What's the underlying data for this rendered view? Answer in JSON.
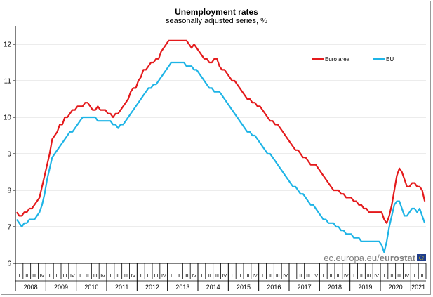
{
  "chart_data": {
    "type": "line",
    "title": "Unemployment rates",
    "subtitle": "seasonally adjusted series, %",
    "xlabel": "",
    "ylabel": "",
    "ylim": [
      6,
      12.5
    ],
    "yticks": [
      "6",
      "7",
      "8",
      "9",
      "10",
      "11",
      "12"
    ],
    "grid": true,
    "legend_position": "top-right",
    "x_start": "2008-01",
    "x_end": "2021-03",
    "years": [
      "2008",
      "2009",
      "2010",
      "2011",
      "2012",
      "2013",
      "2014",
      "2015",
      "2016",
      "2017",
      "2018",
      "2019",
      "2020",
      "2021"
    ],
    "quarter_labels": [
      "I",
      "II",
      "III",
      "IV"
    ],
    "series": [
      {
        "name": "Euro area",
        "color": "#e41a1c",
        "values": [
          7.4,
          7.3,
          7.3,
          7.4,
          7.4,
          7.5,
          7.5,
          7.6,
          7.7,
          7.8,
          8.1,
          8.4,
          8.7,
          9.0,
          9.4,
          9.5,
          9.6,
          9.8,
          9.8,
          10.0,
          10.0,
          10.1,
          10.2,
          10.2,
          10.3,
          10.3,
          10.3,
          10.4,
          10.4,
          10.3,
          10.2,
          10.2,
          10.3,
          10.2,
          10.2,
          10.2,
          10.1,
          10.1,
          10.0,
          10.1,
          10.1,
          10.2,
          10.3,
          10.4,
          10.5,
          10.7,
          10.8,
          10.8,
          11.0,
          11.1,
          11.3,
          11.3,
          11.4,
          11.5,
          11.5,
          11.6,
          11.6,
          11.8,
          11.9,
          12.0,
          12.1,
          12.1,
          12.1,
          12.1,
          12.1,
          12.1,
          12.1,
          12.1,
          12.0,
          11.9,
          12.0,
          11.9,
          11.8,
          11.7,
          11.6,
          11.6,
          11.5,
          11.5,
          11.6,
          11.6,
          11.4,
          11.3,
          11.3,
          11.2,
          11.1,
          11.0,
          11.0,
          10.9,
          10.8,
          10.7,
          10.6,
          10.5,
          10.5,
          10.4,
          10.4,
          10.3,
          10.3,
          10.2,
          10.1,
          10.0,
          9.9,
          9.9,
          9.8,
          9.8,
          9.7,
          9.6,
          9.5,
          9.4,
          9.3,
          9.2,
          9.1,
          9.1,
          9.0,
          8.9,
          8.9,
          8.8,
          8.7,
          8.7,
          8.7,
          8.6,
          8.5,
          8.4,
          8.3,
          8.2,
          8.1,
          8.0,
          8.0,
          8.0,
          7.9,
          7.9,
          7.8,
          7.8,
          7.8,
          7.7,
          7.7,
          7.6,
          7.6,
          7.5,
          7.5,
          7.4,
          7.4,
          7.4,
          7.4,
          7.4,
          7.4,
          7.2,
          7.1,
          7.3,
          7.6,
          8.0,
          8.4,
          8.6,
          8.5,
          8.3,
          8.1,
          8.1,
          8.2,
          8.2,
          8.1,
          8.1,
          8.0,
          7.7
        ]
      },
      {
        "name": "EU",
        "color": "#1eb4e6",
        "values": [
          7.2,
          7.1,
          7.0,
          7.1,
          7.1,
          7.2,
          7.2,
          7.2,
          7.3,
          7.4,
          7.6,
          7.9,
          8.3,
          8.6,
          8.9,
          9.0,
          9.1,
          9.2,
          9.3,
          9.4,
          9.5,
          9.6,
          9.6,
          9.7,
          9.8,
          9.9,
          10.0,
          10.0,
          10.0,
          10.0,
          10.0,
          10.0,
          9.9,
          9.9,
          9.9,
          9.9,
          9.9,
          9.9,
          9.8,
          9.8,
          9.7,
          9.8,
          9.8,
          9.9,
          10.0,
          10.1,
          10.2,
          10.3,
          10.4,
          10.5,
          10.6,
          10.7,
          10.8,
          10.8,
          10.9,
          10.9,
          11.0,
          11.1,
          11.2,
          11.3,
          11.4,
          11.5,
          11.5,
          11.5,
          11.5,
          11.5,
          11.5,
          11.4,
          11.4,
          11.4,
          11.3,
          11.3,
          11.2,
          11.1,
          11.0,
          10.9,
          10.8,
          10.8,
          10.7,
          10.7,
          10.7,
          10.6,
          10.5,
          10.4,
          10.3,
          10.2,
          10.1,
          10.0,
          9.9,
          9.8,
          9.7,
          9.6,
          9.6,
          9.5,
          9.5,
          9.4,
          9.3,
          9.2,
          9.1,
          9.0,
          9.0,
          8.9,
          8.8,
          8.7,
          8.6,
          8.5,
          8.4,
          8.3,
          8.2,
          8.1,
          8.1,
          8.0,
          7.9,
          7.9,
          7.8,
          7.7,
          7.6,
          7.6,
          7.5,
          7.4,
          7.3,
          7.2,
          7.2,
          7.1,
          7.1,
          7.1,
          7.0,
          7.0,
          6.9,
          6.9,
          6.8,
          6.8,
          6.8,
          6.7,
          6.7,
          6.7,
          6.6,
          6.6,
          6.6,
          6.6,
          6.6,
          6.6,
          6.6,
          6.6,
          6.5,
          6.3,
          6.6,
          7.0,
          7.3,
          7.6,
          7.7,
          7.7,
          7.5,
          7.3,
          7.3,
          7.4,
          7.5,
          7.5,
          7.4,
          7.5,
          7.3,
          7.1
        ]
      }
    ],
    "source": {
      "prefix": "ec.europa.eu/",
      "brand": "eurostat"
    }
  }
}
